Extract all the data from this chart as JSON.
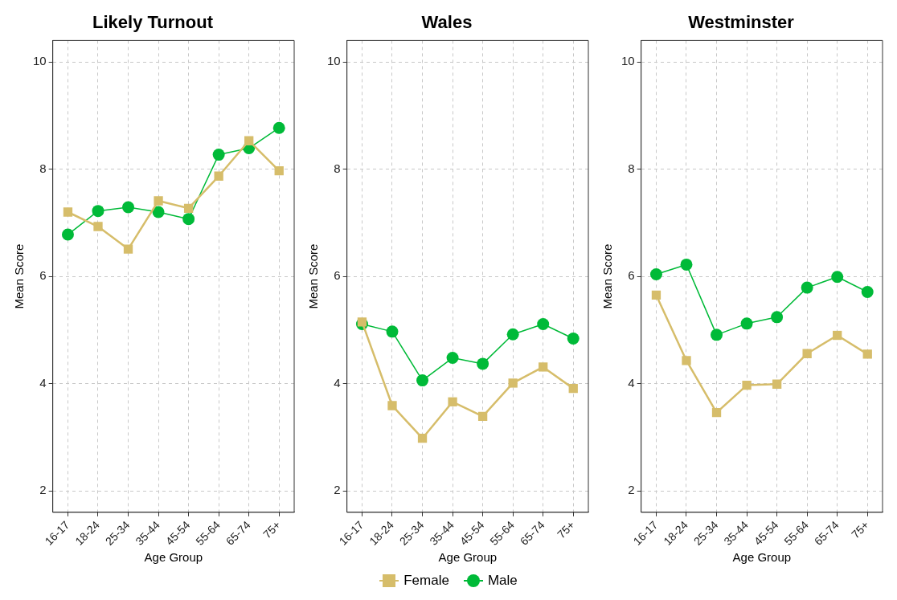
{
  "chart_data": [
    {
      "type": "line",
      "title": "Likely Turnout",
      "xlabel": "Age Group",
      "ylabel": "Mean Score",
      "categories": [
        "16-17",
        "18-24",
        "25-34",
        "35-44",
        "45-54",
        "55-64",
        "65-74",
        "75+"
      ],
      "series": [
        {
          "color": "#d6bd6a",
          "marker": "square",
          "values": [
            7.2,
            6.93,
            6.51,
            7.41,
            7.27,
            7.87,
            8.53,
            7.97
          ]
        },
        {
          "color": "#00ba38",
          "marker": "circle",
          "values": [
            6.78,
            7.22,
            7.29,
            7.2,
            7.07,
            8.27,
            8.39,
            8.77
          ]
        }
      ],
      "ylim": [
        1.6,
        10.4
      ],
      "yticks": [
        2,
        4,
        6,
        8,
        10
      ],
      "grid": true
    },
    {
      "type": "line",
      "title": "Wales",
      "xlabel": "Age Group",
      "ylabel": "Mean Score",
      "categories": [
        "16-17",
        "18-24",
        "25-34",
        "35-44",
        "45-54",
        "55-64",
        "65-74",
        "75+"
      ],
      "series": [
        {
          "name": "Female",
          "color": "#d6bd6a",
          "marker": "square",
          "values": [
            5.15,
            3.59,
            2.98,
            3.66,
            3.39,
            4.01,
            4.31,
            3.91
          ]
        },
        {
          "name": "Male",
          "color": "#00ba38",
          "marker": "circle",
          "values": [
            5.11,
            4.97,
            4.06,
            4.48,
            4.37,
            4.92,
            5.11,
            4.84
          ]
        }
      ],
      "ylim": [
        1.6,
        10.4
      ],
      "yticks": [
        2,
        4,
        6,
        8,
        10
      ],
      "grid": true,
      "legend": "bottom"
    },
    {
      "type": "line",
      "title": "Westminster",
      "xlabel": "Age Group",
      "ylabel": "Mean Score",
      "categories": [
        "16-17",
        "18-24",
        "25-34",
        "35-44",
        "45-54",
        "55-64",
        "65-74",
        "75+"
      ],
      "series": [
        {
          "color": "#d6bd6a",
          "marker": "square",
          "values": [
            5.65,
            4.43,
            3.46,
            3.97,
            3.99,
            4.56,
            4.9,
            4.55
          ]
        },
        {
          "color": "#00ba38",
          "marker": "circle",
          "values": [
            6.04,
            6.22,
            4.91,
            5.12,
            5.24,
            5.79,
            5.99,
            5.71
          ]
        }
      ],
      "ylim": [
        1.6,
        10.4
      ],
      "yticks": [
        2,
        4,
        6,
        8,
        10
      ],
      "grid": true
    }
  ]
}
